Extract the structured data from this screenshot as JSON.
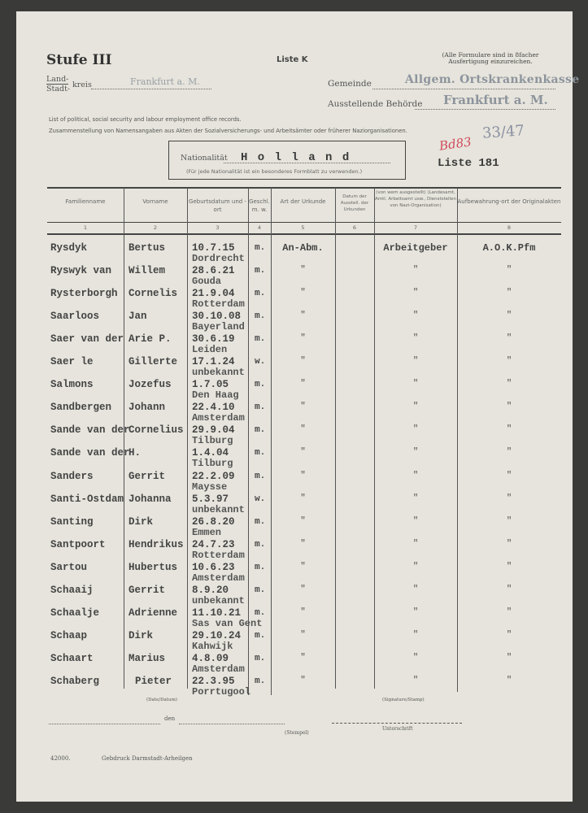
{
  "header": {
    "stufe": "Stufe III",
    "liste_k": "Liste K",
    "note": "(Alle Formulare sind in 8facher Ausfertigung einzureichen.",
    "land_stadt_top": "Land-",
    "land_stadt_bottom": "Stadt-",
    "kreis_label": "kreis",
    "kreis_value": "Frankfurt a. M.",
    "gemeinde_label": "Gemeinde",
    "gemeinde_value": "Allgem. Ortskrankenkasse",
    "behoerde_label": "Ausstellende Behörde",
    "behoerde_value": "Frankfurt a. M.",
    "english_line": "List of political, social security and labour employment office records.",
    "german_line": "Zusammenstellung von Namensangaben aus Akten der Sozialversicherungs- und Arbeitsämter oder früherer Naziorganisationen.",
    "nationalitaet_label": "Nationalität",
    "nationalitaet_value": "H o l l a n d",
    "nationalitaet_note": "(Für jede Nationalität ist ein besonderes Formblatt zu verwenden.)",
    "liste_number": "Liste  181",
    "handwritten_number": "33/47",
    "red_mark": "Bd83"
  },
  "table": {
    "columns": [
      {
        "label": "Familienname",
        "num": "1"
      },
      {
        "label": "Vorname",
        "num": "2"
      },
      {
        "label": "Geburtsdatum und -ort",
        "num": "3"
      },
      {
        "label": "Geschl. m. w.",
        "num": "4"
      },
      {
        "label": "Art der Urkunde",
        "num": "5"
      },
      {
        "label": "Datum der Ausstell. der Urkunden",
        "num": "6"
      },
      {
        "label": "(von wem ausgestellt) (Landesamt, Amtl. Arbeitsamt usw., Dienststellen von Nazi-Organisation)",
        "num": "7"
      },
      {
        "label": "Aufbewahrung-ort der Originalakten",
        "num": "8"
      }
    ],
    "rows": [
      {
        "surname": "Rysdyk",
        "first": "Bertus",
        "date": "10.7.15",
        "sex": "m.",
        "place": "Dordrecht",
        "art": "An-Abm.",
        "by": "Arbeitgeber",
        "store": "A.O.K.Pfm"
      },
      {
        "surname": "Ryswyk van",
        "first": "Willem",
        "date": "28.6.21",
        "sex": "m.",
        "place": "Gouda",
        "art": "\"",
        "by": "\"",
        "store": "\""
      },
      {
        "surname": "Rysterborgh",
        "first": "Cornelis",
        "date": "21.9.04",
        "sex": "m.",
        "place": "Rotterdam",
        "art": "\"",
        "by": "\"",
        "store": "\""
      },
      {
        "surname": "Saarloos",
        "first": "Jan",
        "date": "30.10.08",
        "sex": "m.",
        "place": "Bayerland",
        "art": "\"",
        "by": "\"",
        "store": "\""
      },
      {
        "surname": "Saer van der",
        "first": "Arie P.",
        "date": "30.6.19",
        "sex": "m.",
        "place": "Leiden",
        "art": "\"",
        "by": "\"",
        "store": "\""
      },
      {
        "surname": "Saer le",
        "first": "Gillerte",
        "date": "17.1.24",
        "sex": "w.",
        "place": "unbekannt",
        "art": "\"",
        "by": "\"",
        "store": "\""
      },
      {
        "surname": "Salmons",
        "first": "Jozefus",
        "date": "1.7.05",
        "sex": "m.",
        "place": "Den Haag",
        "art": "\"",
        "by": "\"",
        "store": "\""
      },
      {
        "surname": "Sandbergen",
        "first": "Johann",
        "date": "22.4.10",
        "sex": "m.",
        "place": "Amsterdam",
        "art": "\"",
        "by": "\"",
        "store": "\""
      },
      {
        "surname": "Sande van der",
        "first": "Cornelius",
        "date": "29.9.04",
        "sex": "m.",
        "place": "Tilburg",
        "art": "\"",
        "by": "\"",
        "store": "\""
      },
      {
        "surname": "Sande van der",
        "first": "H.",
        "date": "1.4.04",
        "sex": "m.",
        "place": "Tilburg",
        "art": "\"",
        "by": "\"",
        "store": "\""
      },
      {
        "surname": "Sanders",
        "first": "Gerrit",
        "date": "22.2.09",
        "sex": "m.",
        "place": "Maysse",
        "art": "\"",
        "by": "\"",
        "store": "\""
      },
      {
        "surname": "Santi-Ostdam",
        "first": "Johanna",
        "date": "5.3.97",
        "sex": "w.",
        "place": "unbekannt",
        "art": "\"",
        "by": "\"",
        "store": "\""
      },
      {
        "surname": "Santing",
        "first": "Dirk",
        "date": "26.8.20",
        "sex": "m.",
        "place": "Emmen",
        "art": "\"",
        "by": "\"",
        "store": "\""
      },
      {
        "surname": "Santpoort",
        "first": "Hendrikus",
        "date": "24.7.23",
        "sex": "m.",
        "place": "Rotterdam",
        "art": "\"",
        "by": "\"",
        "store": "\""
      },
      {
        "surname": "Sartou",
        "first": "Hubertus",
        "date": "10.6.23",
        "sex": "m.",
        "place": "Amsterdam",
        "art": "\"",
        "by": "\"",
        "store": "\""
      },
      {
        "surname": "Schaaij",
        "first": "Gerrit",
        "date": "8.9.20",
        "sex": "m.",
        "place": "unbekannt",
        "art": "\"",
        "by": "\"",
        "store": "\""
      },
      {
        "surname": "Schaalje",
        "first": "Adrienne",
        "date": "11.10.21",
        "sex": "m.",
        "place": "Sas van Gent",
        "art": "\"",
        "by": "\"",
        "store": "\""
      },
      {
        "surname": "Schaap",
        "first": "Dirk",
        "date": "29.10.24",
        "sex": "m.",
        "place": "Kahwijk",
        "art": "\"",
        "by": "\"",
        "store": "\""
      },
      {
        "surname": "Schaart",
        "first": "Marius",
        "date": "4.8.09",
        "sex": "m.",
        "place": "Amsterdam",
        "art": "\"",
        "by": "\"",
        "store": "\""
      },
      {
        "surname": "Schaberg",
        "first": "Pieter",
        "date": "22.3.95",
        "sex": "m.",
        "place": "Porrtugool",
        "art": "\"",
        "by": "\"",
        "store": "\""
      }
    ]
  },
  "footer": {
    "date_label": "(Date/Datum)",
    "signature_label": "(Signature/Stamp)",
    "den_label": "den",
    "stempel_label": "(Stempel)",
    "unterschrift_label": "Unterschrift",
    "form_number": "42000.",
    "printer": "Gebdruck  Darmstadt-Arheilgen"
  }
}
